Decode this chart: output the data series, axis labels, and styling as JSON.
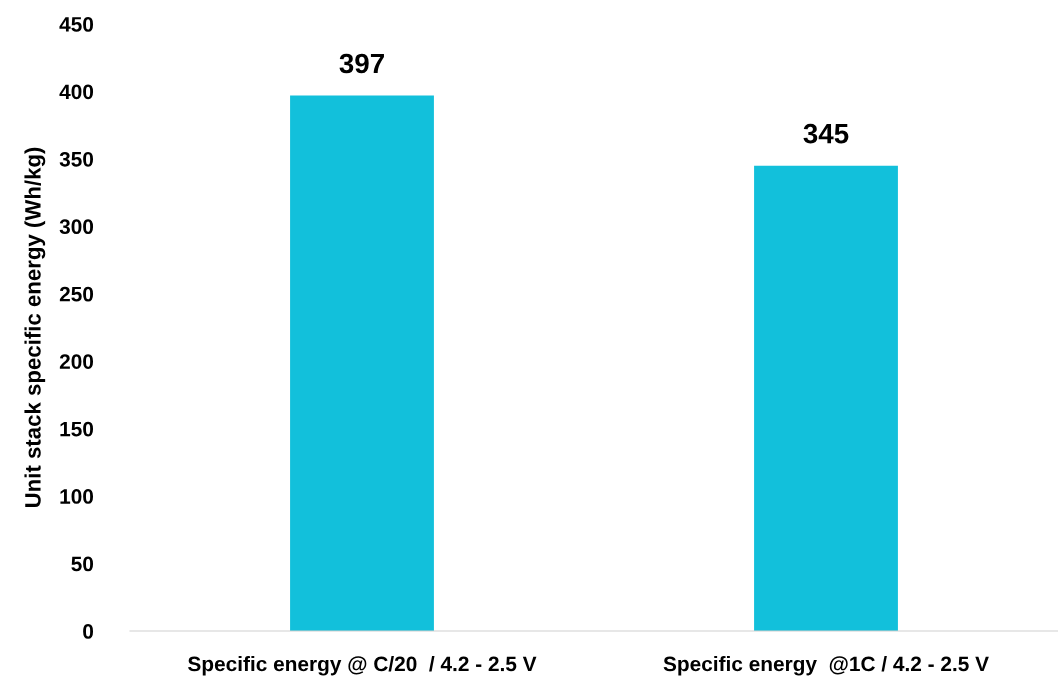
{
  "chart_data": {
    "type": "bar",
    "ylabel": "Unit stack specific energy (Wh/kg)",
    "categories": [
      "Specific energy @ C/20  / 4.2 - 2.5 V",
      "Specific energy  @1C / 4.2 - 2.5 V"
    ],
    "values": [
      397,
      345
    ],
    "color": "#12c0db",
    "ylim": [
      0,
      450
    ],
    "yticks": [
      0,
      50,
      100,
      150,
      200,
      250,
      300,
      350,
      400,
      450
    ],
    "data_labels": true,
    "grid": false,
    "legend": false
  }
}
